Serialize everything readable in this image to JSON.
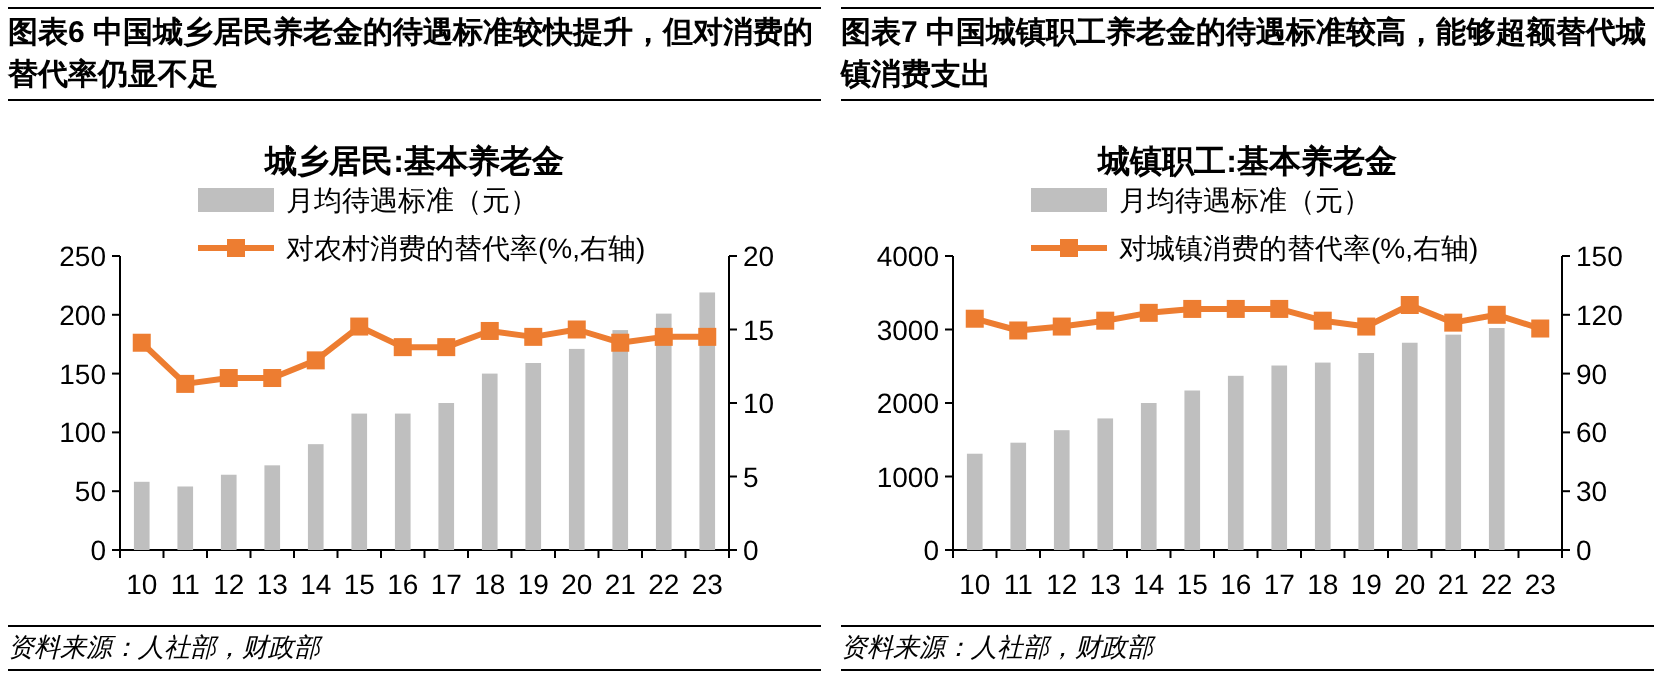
{
  "chart_data": [
    {
      "type": "bar",
      "title": "图表6    中国城乡居民养老金的待遇标准较快提升，但对消费的替代率仍显不足",
      "subtitle": "城乡居民:基本养老金",
      "categories": [
        "10",
        "11",
        "12",
        "13",
        "14",
        "15",
        "16",
        "17",
        "18",
        "19",
        "20",
        "21",
        "22",
        "23"
      ],
      "series": [
        {
          "name": "月均待遇标准（元）",
          "color": "#bfbfbf",
          "values": [
            58,
            54,
            64,
            72,
            90,
            116,
            116,
            125,
            150,
            159,
            171,
            187,
            201,
            219
          ]
        },
        {
          "name": "对农村消费的替代率(%,右轴)",
          "type": "line",
          "axis": "y2",
          "color": "#ed7d31",
          "values": [
            14.1,
            11.3,
            11.7,
            11.7,
            12.9,
            15.2,
            13.8,
            13.8,
            14.9,
            14.5,
            15.0,
            14.1,
            14.5,
            14.5
          ]
        }
      ],
      "ylim": [
        0,
        250
      ],
      "yticks": [
        0,
        50,
        100,
        150,
        200,
        250
      ],
      "y2lim": [
        0,
        20
      ],
      "y2ticks": [
        0,
        5,
        10,
        15,
        20
      ],
      "marker": "square",
      "legend": "top",
      "grid": false,
      "annotations": [
        "资料来源：人社部，财政部"
      ]
    },
    {
      "type": "bar",
      "title": "图表7    中国城镇职工养老金的待遇标准较高，能够超额替代城镇消费支出",
      "subtitle": "城镇职工:基本养老金",
      "categories": [
        "10",
        "11",
        "12",
        "13",
        "14",
        "15",
        "16",
        "17",
        "18",
        "19",
        "20",
        "21",
        "22",
        "23"
      ],
      "series": [
        {
          "name": "月均待遇标准（元）",
          "color": "#bfbfbf",
          "values": [
            1310,
            1460,
            1630,
            1790,
            2000,
            2170,
            2370,
            2510,
            2550,
            2680,
            2820,
            2930,
            3020,
            null
          ]
        },
        {
          "name": "对城镇消费的替代率(%,右轴)",
          "type": "line",
          "axis": "y2",
          "color": "#ed7d31",
          "values": [
            118,
            112,
            114,
            117,
            121,
            123,
            123,
            123,
            117,
            114,
            125,
            116,
            120,
            113
          ]
        }
      ],
      "ylim": [
        0,
        4000
      ],
      "yticks": [
        0,
        1000,
        2000,
        3000,
        4000
      ],
      "y2lim": [
        0,
        150
      ],
      "y2ticks": [
        0,
        30,
        60,
        90,
        120,
        150
      ],
      "marker": "square",
      "legend": "top",
      "grid": false,
      "annotations": [
        "资料来源：人社部，财政部"
      ]
    }
  ]
}
